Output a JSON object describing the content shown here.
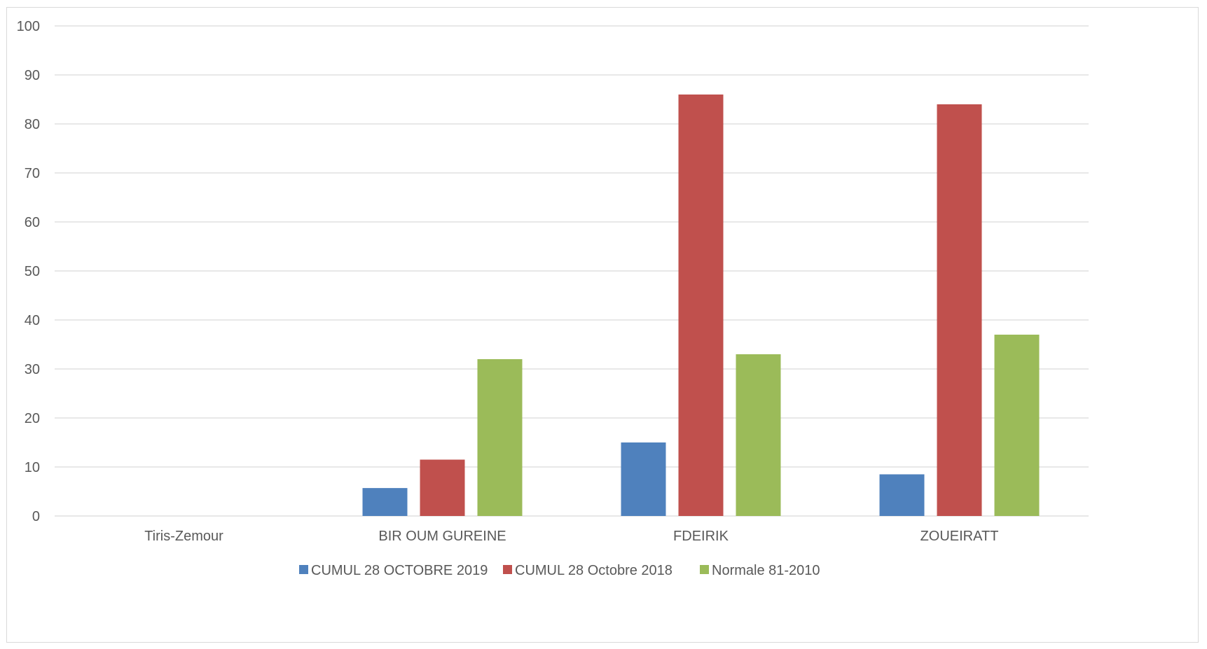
{
  "chart_data": {
    "type": "bar",
    "title": "",
    "xlabel": "",
    "ylabel": "",
    "ylim": [
      0,
      100
    ],
    "yticks": [
      0,
      10,
      20,
      30,
      40,
      50,
      60,
      70,
      80,
      90,
      100
    ],
    "grid": true,
    "legend_position": "bottom",
    "categories": [
      "Tiris-Zemour",
      "BIR OUM GUREINE",
      "FDEIRIK",
      "ZOUEIRATT"
    ],
    "series": [
      {
        "name": "CUMUL 28 OCTOBRE 2019",
        "color": "#4F81BD",
        "values": [
          null,
          5.7,
          15,
          8.5
        ]
      },
      {
        "name": "CUMUL 28 Octobre 2018",
        "color": "#C0504D",
        "values": [
          null,
          11.5,
          86,
          84
        ]
      },
      {
        "name": "Normale 81-2010",
        "color": "#9BBB59",
        "values": [
          null,
          32,
          33,
          37
        ]
      }
    ]
  }
}
